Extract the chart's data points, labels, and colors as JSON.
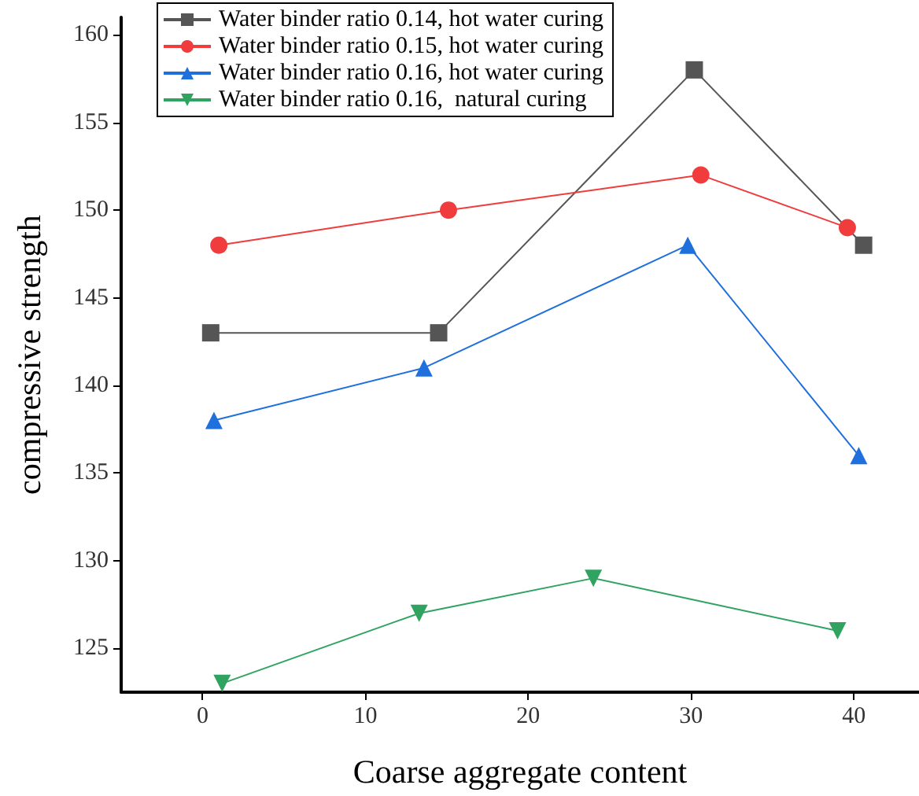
{
  "chart_data": {
    "type": "line",
    "xlabel": "Coarse aggregate content",
    "ylabel": "compressive strength",
    "xlim": [
      -5,
      44
    ],
    "xticks": [
      0,
      10,
      20,
      30,
      40
    ],
    "ylim": [
      122.5,
      161
    ],
    "yticks": [
      125,
      130,
      135,
      140,
      145,
      150,
      155,
      160
    ],
    "grid": false,
    "legend": "top",
    "line_style": "solid",
    "series": [
      {
        "name": "Water binder ratio 0.14, hot water curing",
        "color": "#555555",
        "marker": "square",
        "x": [
          0.5,
          14.5,
          30.2,
          40.6
        ],
        "values": [
          143,
          143,
          158,
          148
        ]
      },
      {
        "name": "Water binder ratio 0.15, hot water curing",
        "color": "#f03c3c",
        "marker": "circle",
        "x": [
          1.0,
          15.1,
          30.6,
          39.6
        ],
        "values": [
          148,
          150,
          152,
          149
        ]
      },
      {
        "name": "Water binder ratio 0.16, hot water curing",
        "color": "#1f6fdc",
        "marker": "triangle",
        "x": [
          0.7,
          13.6,
          29.8,
          40.3
        ],
        "values": [
          138,
          141,
          148,
          136
        ]
      },
      {
        "name": "Water binder ratio 0.16,  natural curing",
        "color": "#2fa35f",
        "marker": "triangle-down",
        "x": [
          1.2,
          13.3,
          24.0,
          39.0
        ],
        "values": [
          123,
          127,
          129,
          126
        ]
      }
    ]
  }
}
